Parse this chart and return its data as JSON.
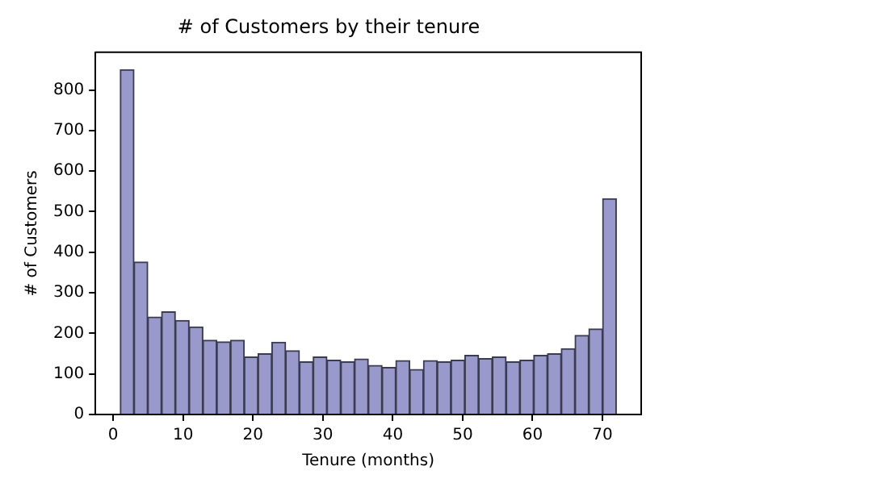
{
  "chart_data": {
    "type": "histogram",
    "title": "# of Customers by their tenure",
    "xlabel": "Tenure (months)",
    "ylabel": "# of Customers",
    "bins": [
      1,
      2.97,
      4.94,
      6.92,
      8.89,
      10.86,
      12.83,
      14.81,
      16.78,
      18.75,
      20.72,
      22.69,
      24.67,
      26.64,
      28.61,
      30.58,
      32.56,
      34.53,
      36.5,
      38.47,
      40.44,
      42.42,
      44.39,
      46.36,
      48.33,
      50.31,
      52.28,
      54.25,
      56.22,
      58.19,
      60.17,
      62.14,
      64.11,
      66.08,
      68.06,
      70.03,
      72
    ],
    "values": [
      850,
      376,
      240,
      253,
      232,
      216,
      183,
      179,
      183,
      142,
      150,
      178,
      157,
      130,
      142,
      134,
      130,
      137,
      121,
      116,
      133,
      111,
      133,
      130,
      134,
      146,
      138,
      142,
      130,
      134,
      146,
      150,
      162,
      195,
      211,
      532
    ],
    "color": "#9999cc",
    "xlim": [
      -2.55,
      75.55
    ],
    "ylim": [
      0,
      893
    ],
    "xticks": [
      0,
      10,
      20,
      30,
      40,
      50,
      60,
      70
    ],
    "yticks": [
      0,
      100,
      200,
      300,
      400,
      500,
      600,
      700,
      800
    ],
    "grid": false,
    "legend": false
  }
}
